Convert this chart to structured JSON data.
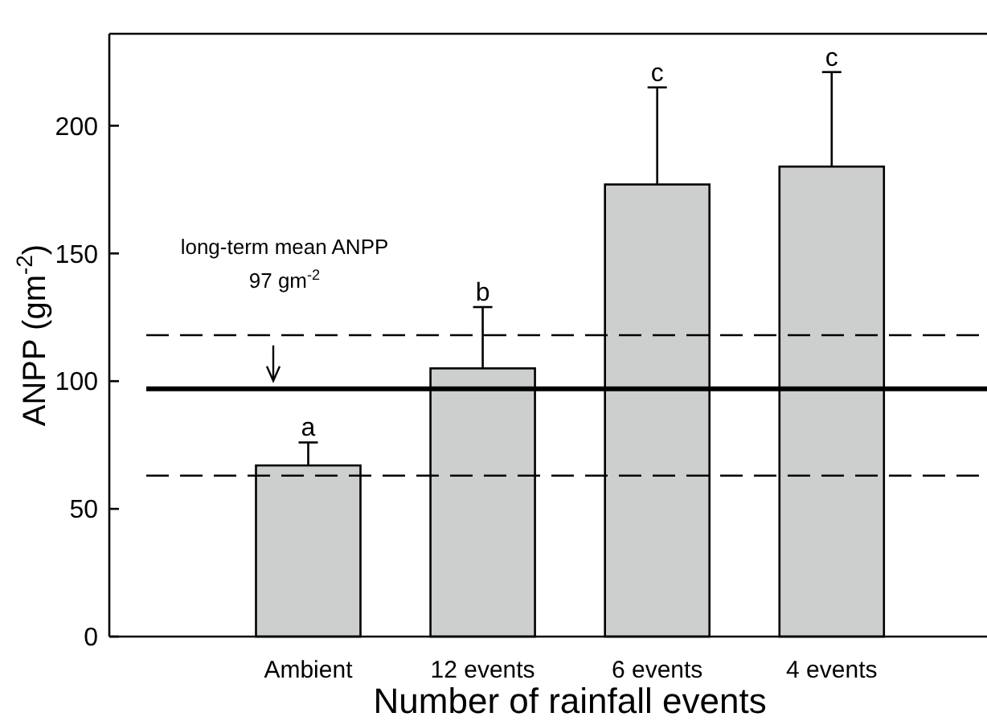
{
  "chart_data": {
    "type": "bar",
    "xlabel": "Number of rainfall events",
    "ylabel": "ANPP (gm$^{-2}$)",
    "categories": [
      "Ambient",
      "12 events",
      "6 events",
      "4 events"
    ],
    "values": [
      67,
      105,
      177,
      184
    ],
    "errors": [
      [
        67,
        76
      ],
      [
        105,
        129
      ],
      [
        177,
        215
      ],
      [
        184,
        221
      ]
    ],
    "color": "#cdcfcf",
    "ylim": [
      0,
      236
    ],
    "yticks": [
      0,
      50,
      100,
      150,
      200
    ],
    "grid": false,
    "ref_lines": [
      {
        "axis": "y",
        "value": 97,
        "label": "long-term mean ANPP\n97 gm$^{-2}$",
        "line_style": "solid"
      },
      {
        "axis": "y",
        "value": 118,
        "line_style": "dashed"
      },
      {
        "axis": "y",
        "value": 63,
        "line_style": "dashed"
      }
    ],
    "annotations": [
      {
        "text": "a",
        "x": "Ambient",
        "y": 76
      },
      {
        "text": "b",
        "x": "12 events",
        "y": 129
      },
      {
        "text": "c",
        "x": "6 events",
        "y": 215
      },
      {
        "text": "c",
        "x": "4 events",
        "y": 221
      }
    ]
  }
}
